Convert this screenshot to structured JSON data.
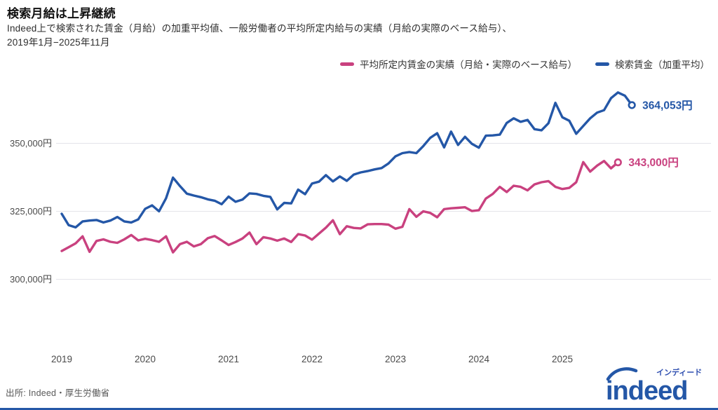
{
  "header": {
    "title": "検索月給は上昇継続",
    "subtitle_line1": "Indeed上で検索された賃金（月給）の加重平均値、一般労働者の平均所定内給与の実績（月給の実際のベース給与）、",
    "subtitle_line2": "2019年1月−2025年11月"
  },
  "colors": {
    "search_wage_blue": "#2457a7",
    "actual_wage_pink": "#c9417f",
    "gridline": "#e4e4ea",
    "axis_text": "#4a4a4a",
    "logo_blue": "#2457a7",
    "logo_katakana_blue": "#2f4fb0"
  },
  "legend": [
    {
      "label": "平均所定内賃金の実績（月給・実際のベース給与）",
      "color": "#c9417f"
    },
    {
      "label": "検索賃金（加重平均）",
      "color": "#2457a7"
    }
  ],
  "chart_data": {
    "type": "line",
    "title": "検索月給は上昇継続",
    "x_frequency": "monthly",
    "x_tick_labels": [
      "2019",
      "2020",
      "2021",
      "2022",
      "2023",
      "2024",
      "2025"
    ],
    "y_axis": {
      "unit": "円",
      "ticks": [
        {
          "value": 350000,
          "label": "350,000円"
        },
        {
          "value": 325000,
          "label": "325,000円"
        },
        {
          "value": 300000,
          "label": "300,000円"
        }
      ],
      "range_shown": [
        277000,
        374000
      ]
    },
    "grid": "horizontal-only",
    "legend_position": "top-right",
    "series": [
      {
        "name": "平均所定内賃金の実績（月給・実際のベース給与）",
        "key": "actual-wage",
        "color": "#c9417f",
        "start_month": "2019-01",
        "end_month": "2025-09",
        "end_label": "343,000円",
        "end_value": 343000,
        "values": [
          310400,
          311800,
          313200,
          315800,
          310100,
          314100,
          314700,
          313800,
          313400,
          314700,
          316300,
          314300,
          314900,
          314400,
          313800,
          315800,
          309900,
          312900,
          313800,
          312100,
          312900,
          315100,
          315900,
          314300,
          312600,
          313700,
          315000,
          317200,
          312900,
          315500,
          315000,
          314200,
          315000,
          313700,
          316600,
          316100,
          314600,
          316800,
          319000,
          321700,
          316600,
          319500,
          318900,
          318700,
          320200,
          320300,
          320300,
          320100,
          318600,
          319300,
          325800,
          323000,
          325000,
          324400,
          322800,
          325800,
          326100,
          326300,
          326500,
          325100,
          325400,
          329700,
          331400,
          334000,
          332100,
          334400,
          334000,
          332700,
          334900,
          335700,
          336100,
          334000,
          333200,
          333600,
          335700,
          343100,
          339600,
          341800,
          343500,
          340800,
          343000
        ]
      },
      {
        "name": "検索賃金（加重平均）",
        "key": "search-wage",
        "color": "#2457a7",
        "start_month": "2019-01",
        "end_month": "2025-11",
        "end_label": "364,053円",
        "end_value": 364053,
        "values": [
          324100,
          319900,
          319100,
          321300,
          321600,
          321800,
          320900,
          321600,
          322900,
          321300,
          320900,
          322000,
          325900,
          327200,
          325000,
          329800,
          337400,
          334300,
          331500,
          330800,
          330200,
          329400,
          328900,
          327600,
          330400,
          328500,
          329300,
          331600,
          331400,
          330700,
          330300,
          325700,
          328100,
          327900,
          333000,
          331300,
          335200,
          335900,
          338300,
          336000,
          337800,
          336200,
          338500,
          339300,
          339800,
          340400,
          340900,
          342600,
          345200,
          346400,
          346800,
          346400,
          349000,
          352000,
          353700,
          348500,
          354300,
          349400,
          352400,
          349800,
          348400,
          352800,
          352900,
          353200,
          357500,
          359200,
          357900,
          358600,
          355200,
          354800,
          357400,
          364900,
          359600,
          358300,
          353500,
          356400,
          359200,
          361300,
          362200,
          366600,
          368700,
          367500,
          364053
        ]
      }
    ]
  },
  "footer": {
    "source": "出所: Indeed・厚生労働省",
    "logo_text": "indeed",
    "logo_katakana": "インディード"
  }
}
